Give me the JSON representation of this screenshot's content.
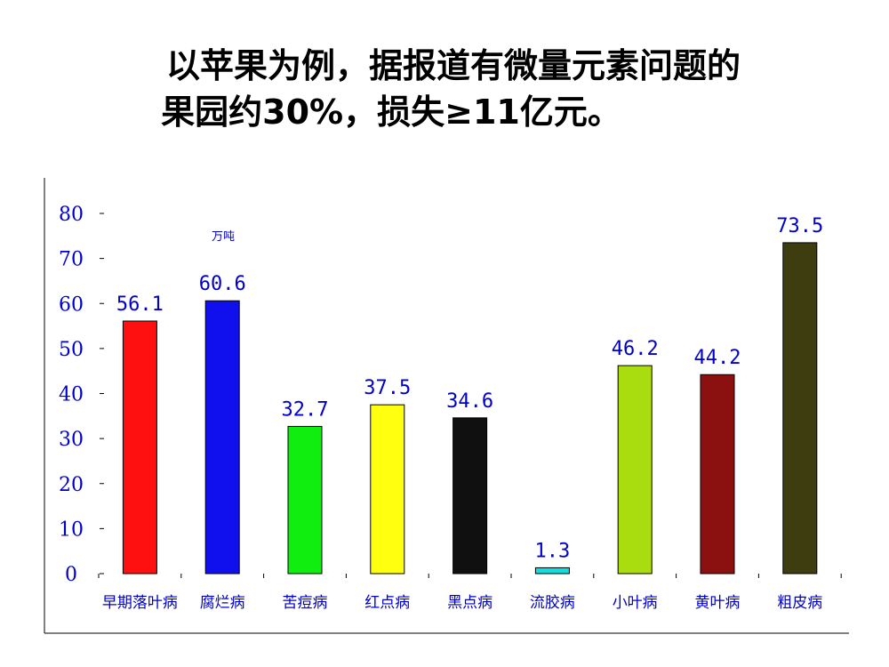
{
  "title": {
    "line1": "以苹果为例，据报道有微量元素问题的",
    "line2": "果园约30%，损失≥11亿元。"
  },
  "chart_data": {
    "type": "bar",
    "unit": "万吨",
    "categories": [
      "早期落叶病",
      "腐烂病",
      "苦痘病",
      "红点病",
      "黑点病",
      "流胶病",
      "小叶病",
      "黄叶病",
      "粗皮病"
    ],
    "values": [
      56.1,
      60.6,
      32.7,
      37.5,
      34.6,
      1.3,
      46.2,
      44.2,
      73.5
    ],
    "value_labels": [
      "56.1",
      "60.6",
      "32.7",
      "37.5",
      "34.6",
      "1.3",
      "46.2",
      "44.2",
      "73.5"
    ],
    "colors": [
      "#ff1010",
      "#1010ee",
      "#10ee10",
      "#ffff10",
      "#101010",
      "#10dddd",
      "#aadd10",
      "#8b1010",
      "#3d3d10"
    ],
    "yticks": [
      0,
      10,
      20,
      30,
      40,
      50,
      60,
      70,
      80
    ],
    "ylim": [
      0,
      80
    ],
    "grid": false,
    "legend": "none"
  }
}
